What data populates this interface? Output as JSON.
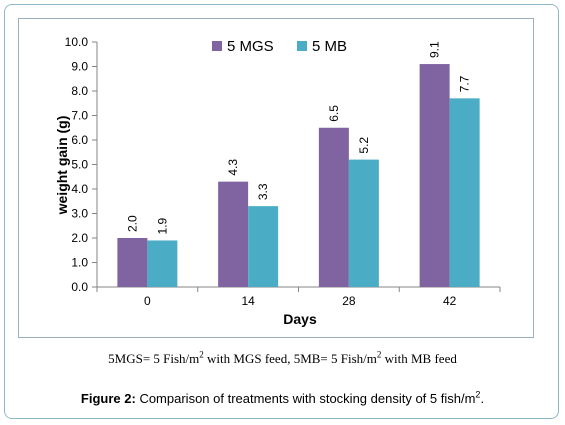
{
  "chart_data": {
    "type": "bar",
    "categories": [
      "0",
      "14",
      "28",
      "42"
    ],
    "series": [
      {
        "name": "5 MGS",
        "color": "#8064a2",
        "values": [
          2.0,
          4.3,
          6.5,
          9.1
        ],
        "labels": [
          "2.0",
          "4.3",
          "6.5",
          "9.1"
        ]
      },
      {
        "name": "5 MB",
        "color": "#4bacc6",
        "values": [
          1.9,
          3.3,
          5.2,
          7.7
        ],
        "labels": [
          "1.9",
          "3.3",
          "5.2",
          "7.7"
        ]
      }
    ],
    "ylim": [
      0,
      10
    ],
    "yticks": [
      "0.0",
      "1.0",
      "2.0",
      "3.0",
      "4.0",
      "5.0",
      "6.0",
      "7.0",
      "8.0",
      "9.0",
      "10.0"
    ],
    "xlabel": "Days",
    "ylabel": "weight gain (g)",
    "legend": "top-center",
    "grid": false
  },
  "note": {
    "part1": "5MGS= 5 Fish/m",
    "sup1": "2",
    "part2": " with MGS feed, 5MB= 5 Fish/m",
    "sup2": "2",
    "part3": " with MB feed"
  },
  "caption": {
    "label": "Figure 2:",
    "text": " Comparison of treatments with stocking density of 5 fish/m",
    "sup": "2",
    "end": "."
  }
}
